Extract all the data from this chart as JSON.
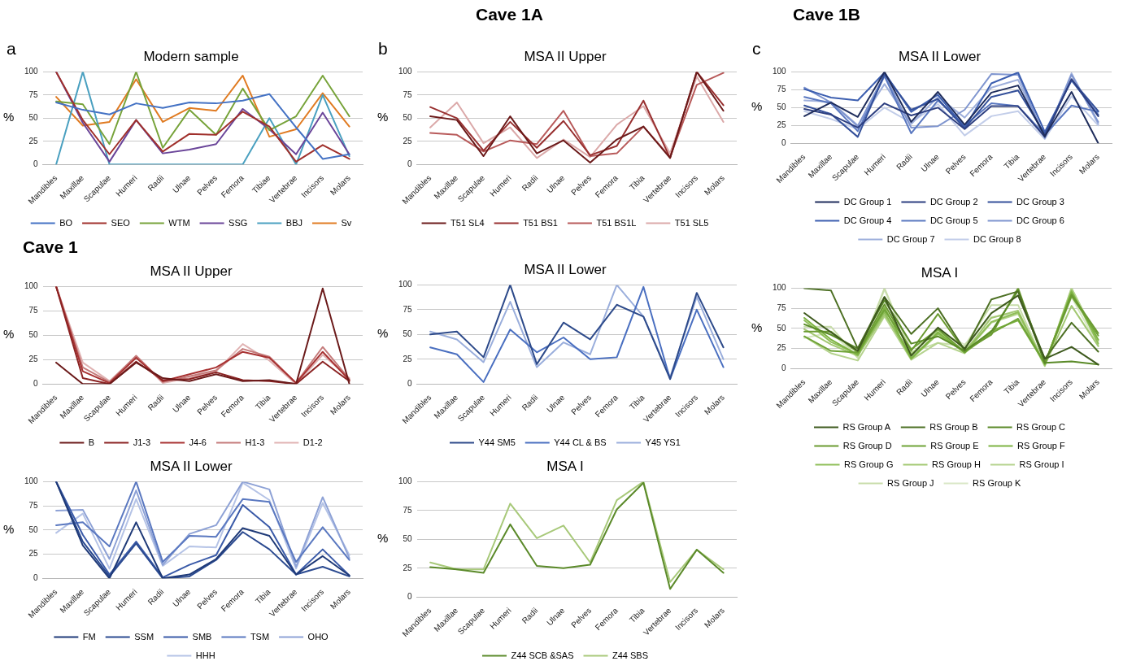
{
  "chart_data": [
    {
      "type": "line",
      "title": "Modern sample",
      "ylabel": "%",
      "annotations": [
        "a"
      ],
      "categories": [
        "Mandibles",
        "Maxillae",
        "Scapulae",
        "Humeri",
        "Radii",
        "Ulnae",
        "Pelves",
        "Femora",
        "Tibiae",
        "Vertebrae",
        "Incisors",
        "Molars"
      ],
      "ylim": [
        0,
        100
      ],
      "yticks": [
        0,
        25,
        50,
        75,
        100
      ],
      "grid": "y",
      "legend": "bottom",
      "marker": "none",
      "line_style": "solid",
      "series": [
        {
          "name": "BO",
          "color": "#4472c4",
          "values": [
            67,
            59,
            54,
            66,
            61,
            67,
            66,
            69,
            76,
            40,
            6,
            11
          ]
        },
        {
          "name": "SEO",
          "color": "#a0302c",
          "values": [
            100,
            48,
            11,
            48,
            14,
            33,
            32,
            57,
            41,
            3,
            21,
            6
          ]
        },
        {
          "name": "WTM",
          "color": "#77a33a",
          "values": [
            68,
            65,
            22,
            100,
            18,
            59,
            32,
            82,
            37,
            52,
            96,
            52
          ]
        },
        {
          "name": "SSG",
          "color": "#6a4599",
          "values": [
            100,
            45,
            3,
            48,
            12,
            16,
            22,
            60,
            38,
            11,
            56,
            11
          ]
        },
        {
          "name": "BBJ",
          "color": "#4aa0c0",
          "values": [
            0,
            100,
            0,
            0,
            0,
            0,
            0,
            0,
            50,
            0,
            75,
            9
          ]
        },
        {
          "name": "Sv",
          "color": "#e07b22",
          "values": [
            73,
            42,
            46,
            92,
            46,
            61,
            58,
            96,
            30,
            38,
            77,
            41
          ]
        }
      ]
    },
    {
      "type": "line",
      "title": "MSA II Upper",
      "ylabel": "%",
      "annotations": [
        "Cave 1A",
        "b"
      ],
      "categories": [
        "Mandibles",
        "Maxillae",
        "Scapulae",
        "Humeri",
        "Radii",
        "Ulnae",
        "Pelves",
        "Femora",
        "Tibia",
        "Vertebrae",
        "Incisors",
        "Molars"
      ],
      "ylim": [
        0,
        100
      ],
      "yticks": [
        0,
        25,
        50,
        75,
        100
      ],
      "grid": "y",
      "legend": "bottom",
      "marker": "none",
      "line_style": "solid",
      "series": [
        {
          "name": "T51 SL4",
          "color": "#6b1a1a",
          "values": [
            52,
            48,
            9,
            52,
            12,
            26,
            2,
            27,
            41,
            7,
            100,
            58
          ]
        },
        {
          "name": "T51 BS1",
          "color": "#983030",
          "values": [
            62,
            50,
            15,
            46,
            18,
            47,
            10,
            20,
            69,
            7,
            100,
            64
          ]
        },
        {
          "name": "T51 BS1L",
          "color": "#b85a5a",
          "values": [
            34,
            32,
            14,
            26,
            22,
            58,
            9,
            12,
            41,
            8,
            86,
            99
          ]
        },
        {
          "name": "T51 SL5",
          "color": "#dba9a9",
          "values": [
            40,
            67,
            23,
            40,
            7,
            27,
            8,
            43,
            63,
            12,
            95,
            46
          ]
        }
      ]
    },
    {
      "type": "line",
      "title": "MSA II Lower",
      "ylabel": "%",
      "annotations": [
        "Cave 1B",
        "c"
      ],
      "categories": [
        "Mandibles",
        "Maxillae",
        "Scapulae",
        "Humeri",
        "Radii",
        "Ulnae",
        "Pelves",
        "Femora",
        "Tibia",
        "Vertebrae",
        "Incisors",
        "Molars"
      ],
      "ylim": [
        0,
        100
      ],
      "yticks": [
        0,
        25,
        50,
        75,
        100
      ],
      "grid": "y",
      "legend": "bottom",
      "marker": "none",
      "line_style": "solid",
      "series": [
        {
          "name": "DC Group 1",
          "color": "#1f2d5c",
          "values": [
            38,
            57,
            37,
            100,
            30,
            72,
            26,
            71,
            81,
            10,
            72,
            0
          ]
        },
        {
          "name": "DC Group 2",
          "color": "#2d3f80",
          "values": [
            48,
            40,
            22,
            56,
            39,
            50,
            20,
            52,
            52,
            9,
            90,
            38
          ]
        },
        {
          "name": "DC Group 3",
          "color": "#34509a",
          "values": [
            53,
            41,
            9,
            97,
            47,
            62,
            21,
            65,
            74,
            13,
            89,
            45
          ]
        },
        {
          "name": "DC Group 4",
          "color": "#3d5fb0",
          "values": [
            76,
            64,
            60,
            99,
            44,
            68,
            22,
            84,
            99,
            16,
            88,
            40
          ]
        },
        {
          "name": "DC Group 5",
          "color": "#5a78c0",
          "values": [
            65,
            56,
            17,
            94,
            14,
            60,
            25,
            56,
            52,
            12,
            53,
            44
          ]
        },
        {
          "name": "DC Group 6",
          "color": "#7f95cf",
          "values": [
            78,
            57,
            24,
            96,
            22,
            24,
            47,
            97,
            96,
            8,
            96,
            30
          ]
        },
        {
          "name": "DC Group 7",
          "color": "#9fb0dc",
          "values": [
            60,
            58,
            25,
            83,
            27,
            65,
            36,
            78,
            89,
            7,
            98,
            27
          ]
        },
        {
          "name": "DC Group 8",
          "color": "#c2cde9",
          "values": [
            45,
            34,
            20,
            50,
            29,
            55,
            11,
            38,
            45,
            6,
            66,
            25
          ]
        }
      ]
    },
    {
      "type": "line",
      "title": "MSA II Upper",
      "ylabel": "%",
      "annotations": [
        "Cave 1"
      ],
      "categories": [
        "Mandibles",
        "Maxillae",
        "Scapulae",
        "Humeri",
        "Radii",
        "Ulnae",
        "Pelves",
        "Femora",
        "Tibia",
        "Vertebrae",
        "Incisors",
        "Molars"
      ],
      "ylim": [
        0,
        100
      ],
      "yticks": [
        0,
        25,
        50,
        75,
        100
      ],
      "grid": "y",
      "legend": "bottom",
      "marker": "none",
      "line_style": "solid",
      "series": [
        {
          "name": "B",
          "color": "#6b1a1a",
          "values": [
            22,
            0,
            0,
            22,
            6,
            3,
            10,
            3,
            4,
            0,
            98,
            0
          ]
        },
        {
          "name": "J1-3",
          "color": "#8b2323",
          "values": [
            100,
            6,
            0,
            23,
            4,
            5,
            12,
            4,
            3,
            0,
            23,
            3
          ]
        },
        {
          "name": "J4-6",
          "color": "#a83232",
          "values": [
            100,
            13,
            1,
            27,
            3,
            10,
            17,
            33,
            27,
            1,
            33,
            4
          ]
        },
        {
          "name": "H1-3",
          "color": "#c47a7a",
          "values": [
            100,
            17,
            2,
            29,
            2,
            8,
            14,
            36,
            28,
            1,
            38,
            5
          ]
        },
        {
          "name": "D1-2",
          "color": "#e0b3b3",
          "values": [
            100,
            22,
            3,
            28,
            1,
            6,
            13,
            41,
            24,
            0,
            30,
            6
          ]
        }
      ]
    },
    {
      "type": "line",
      "title": "MSA II Lower",
      "ylabel": "%",
      "categories": [
        "Mandibles",
        "Maxillae",
        "Scapulae",
        "Humeri",
        "Radii",
        "Ulnae",
        "Pelves",
        "Femora",
        "Tibia",
        "Vertebrae",
        "Incisors",
        "Molars"
      ],
      "ylim": [
        0,
        100
      ],
      "yticks": [
        0,
        25,
        50,
        75,
        100
      ],
      "grid": "y",
      "legend": "bottom",
      "marker": "none",
      "line_style": "solid",
      "series": [
        {
          "name": "Y44 SM5",
          "color": "#2d4a8a",
          "values": [
            50,
            53,
            27,
            100,
            20,
            62,
            45,
            80,
            68,
            5,
            92,
            37
          ]
        },
        {
          "name": "Y44 CL & BS",
          "color": "#4a6fc0",
          "values": [
            37,
            30,
            2,
            55,
            32,
            47,
            25,
            27,
            98,
            5,
            75,
            17
          ]
        },
        {
          "name": "Y45 YS1",
          "color": "#9aaedc",
          "values": [
            53,
            45,
            22,
            83,
            17,
            42,
            30,
            100,
            68,
            7,
            88,
            25
          ]
        }
      ]
    },
    {
      "type": "line",
      "title": "MSA I",
      "ylabel": "%",
      "categories": [
        "Mandibles",
        "Maxillae",
        "Scapulae",
        "Humeri",
        "Radii",
        "Ulnae",
        "Pelves",
        "Femora",
        "Tibia",
        "Vertebrae",
        "Incisors",
        "Molars"
      ],
      "ylim": [
        0,
        100
      ],
      "yticks": [
        0,
        25,
        50,
        75,
        100
      ],
      "grid": "y",
      "legend": "bottom",
      "marker": "none",
      "line_style": "solid",
      "series": [
        {
          "name": "RS Group A",
          "color": "#3e5a1e",
          "values": [
            69,
            45,
            22,
            89,
            16,
            51,
            25,
            69,
            91,
            12,
            27,
            5
          ]
        },
        {
          "name": "RS Group B",
          "color": "#4d7024",
          "values": [
            100,
            97,
            25,
            89,
            43,
            75,
            23,
            86,
            96,
            12,
            57,
            21
          ]
        },
        {
          "name": "RS Group C",
          "color": "#5a8a28",
          "values": [
            55,
            42,
            25,
            85,
            31,
            40,
            22,
            46,
            97,
            7,
            9,
            5
          ]
        },
        {
          "name": "RS Group D",
          "color": "#6a9a30",
          "values": [
            46,
            46,
            20,
            80,
            22,
            68,
            22,
            42,
            100,
            7,
            92,
            44
          ]
        },
        {
          "name": "RS Group E",
          "color": "#6fa337",
          "values": [
            40,
            22,
            20,
            73,
            24,
            49,
            20,
            44,
            62,
            6,
            90,
            41
          ]
        },
        {
          "name": "RS Group F",
          "color": "#7db342",
          "values": [
            63,
            36,
            17,
            76,
            13,
            45,
            20,
            47,
            60,
            6,
            95,
            36
          ]
        },
        {
          "name": "RS Group G",
          "color": "#8fbe58",
          "values": [
            60,
            33,
            18,
            70,
            12,
            43,
            20,
            58,
            70,
            5,
            97,
            31
          ]
        },
        {
          "name": "RS Group H",
          "color": "#a3c873",
          "values": [
            49,
            30,
            16,
            67,
            18,
            48,
            21,
            63,
            72,
            4,
            78,
            28
          ]
        },
        {
          "name": "RS Group I",
          "color": "#b5d38e",
          "values": [
            40,
            19,
            10,
            65,
            11,
            32,
            19,
            57,
            68,
            3,
            100,
            35
          ]
        },
        {
          "name": "RS Group J",
          "color": "#c8ddaa",
          "values": [
            52,
            52,
            13,
            100,
            20,
            32,
            28,
            79,
            79,
            4,
            100,
            33
          ]
        },
        {
          "name": "RS Group K",
          "color": "#d9e7c6",
          "values": [
            38,
            45,
            14,
            98,
            24,
            46,
            30,
            64,
            69,
            6,
            89,
            28
          ]
        }
      ]
    },
    {
      "type": "line",
      "title": "MSA II Lower",
      "ylabel": "%",
      "categories": [
        "Mandibles",
        "Maxillae",
        "Scapulae",
        "Humeri",
        "Radii",
        "Ulnae",
        "Pelves",
        "Femora",
        "Tibia",
        "Vertebrae",
        "Incisors",
        "Molars"
      ],
      "ylim": [
        0,
        100
      ],
      "yticks": [
        0,
        25,
        50,
        75,
        100
      ],
      "grid": "y",
      "legend": "bottom",
      "marker": "none",
      "line_style": "solid",
      "series": [
        {
          "name": "FM",
          "color": "#1f3a78",
          "values": [
            100,
            34,
            0,
            58,
            0,
            4,
            20,
            52,
            44,
            4,
            23,
            3
          ]
        },
        {
          "name": "SSM",
          "color": "#2b4a90",
          "values": [
            100,
            38,
            2,
            36,
            0,
            2,
            19,
            48,
            30,
            4,
            12,
            2
          ]
        },
        {
          "name": "SMB",
          "color": "#3a5aa8",
          "values": [
            100,
            45,
            4,
            38,
            1,
            14,
            24,
            76,
            53,
            4,
            30,
            3
          ]
        },
        {
          "name": "TSM",
          "color": "#5a78c0",
          "values": [
            55,
            58,
            33,
            100,
            17,
            44,
            43,
            82,
            79,
            17,
            53,
            19
          ]
        },
        {
          "name": "OHO",
          "color": "#8ea2d6",
          "values": [
            70,
            71,
            20,
            91,
            14,
            46,
            55,
            100,
            92,
            12,
            84,
            21
          ]
        },
        {
          "name": "HHH",
          "color": "#b5c3e6",
          "values": [
            47,
            67,
            10,
            82,
            13,
            33,
            32,
            99,
            81,
            10,
            78,
            24
          ]
        }
      ]
    },
    {
      "type": "line",
      "title": "MSA I",
      "ylabel": "%",
      "categories": [
        "Mandibles",
        "Maxillae",
        "Scapulae",
        "Humeri",
        "Radii",
        "Ulnae",
        "Pelves",
        "Femora",
        "Tibia",
        "Vertebrae",
        "Incisors",
        "Molars"
      ],
      "ylim": [
        0,
        100
      ],
      "yticks": [
        0,
        25,
        50,
        75,
        100
      ],
      "grid": "y",
      "legend": "bottom",
      "marker": "none",
      "line_style": "solid",
      "series": [
        {
          "name": "Z44 SCB &SAS",
          "color": "#5b8a2a",
          "values": [
            26,
            24,
            21,
            63,
            27,
            25,
            28,
            76,
            99,
            7,
            41,
            21
          ]
        },
        {
          "name": "Z44 SBS",
          "color": "#a8c97a",
          "values": [
            30,
            24,
            24,
            81,
            51,
            62,
            30,
            84,
            100,
            13,
            41,
            24
          ]
        }
      ]
    }
  ]
}
